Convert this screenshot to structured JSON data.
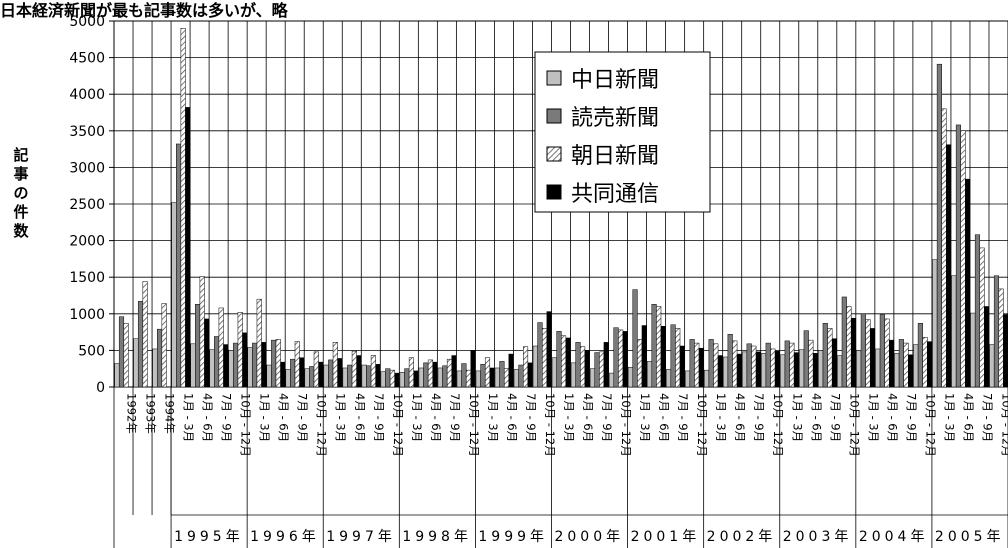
{
  "caption": "日本経済新聞が最も記事数は多いが、略",
  "chart_data": {
    "type": "bar",
    "ylabel": "記事の件数",
    "ylim": [
      0,
      5000
    ],
    "yticks": [
      0,
      500,
      1000,
      1500,
      2000,
      2500,
      3000,
      3500,
      4000,
      4500,
      5000
    ],
    "grid": true,
    "legend_position": "top-right",
    "categories": [
      "1992年",
      "1993年",
      "1994年",
      "1月 - 3月",
      "4月 - 6月",
      "7月 - 9月",
      "10月 - 12月",
      "1月 - 3月",
      "4月 - 6月",
      "7月 - 9月",
      "10月 - 12月",
      "1月 - 3月",
      "4月 - 6月",
      "7月 - 9月",
      "10月 - 12月",
      "1月 - 3月",
      "4月 - 6月",
      "7月 - 9月",
      "10月 - 12月",
      "1月 - 3月",
      "4月 - 6月",
      "7月 - 9月",
      "10月 - 12月",
      "1月 - 3月",
      "4月 - 6月",
      "7月 - 9月",
      "10月 - 12月",
      "1月 - 3月",
      "4月 - 6月",
      "7月 - 9月",
      "10月 - 12月",
      "1月 - 3月",
      "4月 - 6月",
      "7月 - 9月",
      "10月 - 12月",
      "1月 - 3月",
      "4月 - 6月",
      "7月 - 9月",
      "10月 - 12月",
      "1月 - 3月",
      "4月 - 6月",
      "7月 - 9月",
      "10月 - 12月",
      "1月 - 3月",
      "4月 - 6月",
      "7月 - 9月",
      "10月 - 12月"
    ],
    "groups": [
      "1995年",
      "1996年",
      "1997年",
      "1998年",
      "1999年",
      "2000年",
      "2001年",
      "2002年",
      "2003年",
      "2004年",
      "2005年"
    ],
    "series": [
      {
        "name": "中日新聞",
        "pattern": "gray",
        "values": [
          320,
          660,
          520,
          2520,
          590,
          510,
          500,
          540,
          300,
          240,
          250,
          300,
          260,
          300,
          210,
          200,
          260,
          260,
          220,
          220,
          260,
          240,
          560,
          400,
          330,
          250,
          190,
          270,
          350,
          240,
          220,
          230,
          410,
          480,
          460,
          440,
          510,
          500,
          430,
          500,
          520,
          460,
          580,
          1740,
          1520,
          1010,
          580
        ]
      },
      {
        "name": "読売新聞",
        "pattern": "darkgray",
        "values": [
          960,
          1170,
          790,
          3320,
          1130,
          690,
          600,
          600,
          640,
          380,
          280,
          370,
          300,
          290,
          250,
          250,
          330,
          290,
          320,
          310,
          350,
          300,
          880,
          760,
          610,
          470,
          810,
          1330,
          1130,
          850,
          650,
          650,
          720,
          590,
          600,
          630,
          770,
          870,
          1230,
          1000,
          990,
          650,
          870,
          4410,
          3580,
          2080,
          1520
        ]
      },
      {
        "name": "朝日新聞",
        "pattern": "hatched",
        "values": [
          870,
          1440,
          1140,
          4900,
          1510,
          1080,
          1020,
          1200,
          650,
          620,
          480,
          610,
          490,
          430,
          230,
          400,
          370,
          380,
          230,
          400,
          250,
          550,
          800,
          700,
          550,
          480,
          780,
          650,
          1100,
          800,
          600,
          590,
          630,
          560,
          520,
          600,
          640,
          800,
          1100,
          920,
          930,
          600,
          680,
          3800,
          3500,
          1900,
          1340
        ]
      },
      {
        "name": "共同通信",
        "pattern": "black",
        "values": [
          null,
          null,
          null,
          3820,
          930,
          580,
          740,
          610,
          340,
          400,
          340,
          390,
          430,
          310,
          190,
          220,
          340,
          430,
          500,
          260,
          450,
          330,
          1030,
          670,
          500,
          610,
          760,
          840,
          830,
          560,
          530,
          430,
          450,
          480,
          490,
          470,
          460,
          660,
          940,
          800,
          640,
          440,
          620,
          3310,
          2840,
          1100,
          990
        ]
      }
    ]
  }
}
